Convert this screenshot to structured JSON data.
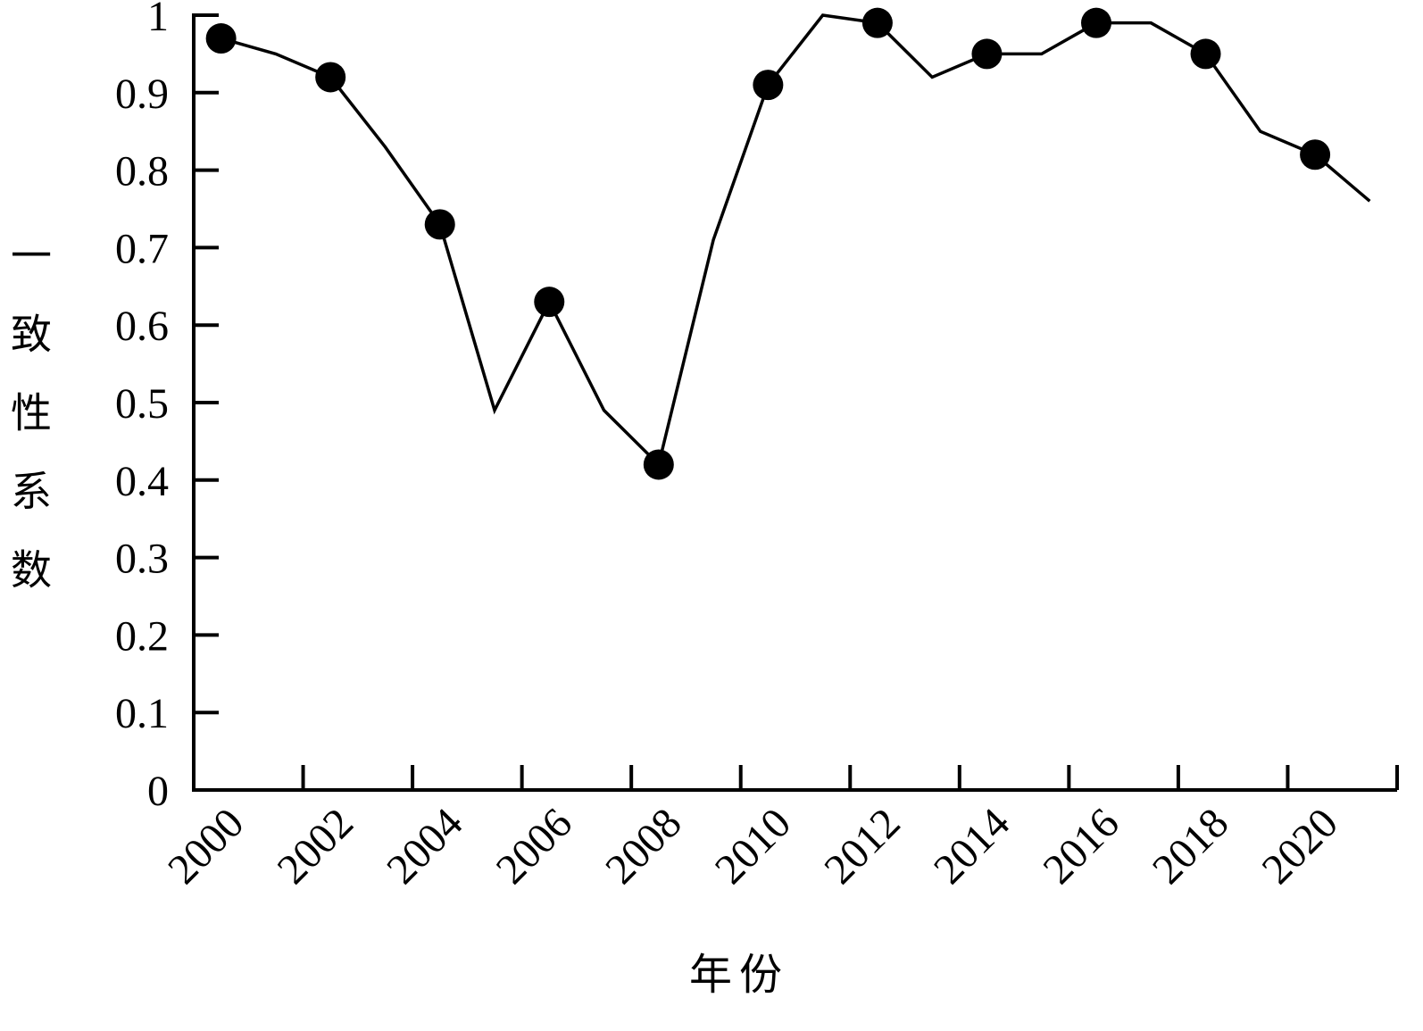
{
  "chart_data": {
    "type": "line",
    "x_label": "年份",
    "y_label": "一致性系数",
    "categories": [
      "2000",
      null,
      "2002",
      null,
      "2004",
      null,
      "2006",
      null,
      "2008",
      null,
      "2010",
      null,
      "2012",
      null,
      "2014",
      null,
      "2016",
      null,
      "2018",
      null,
      "2020",
      null
    ],
    "values": [
      0.97,
      0.95,
      0.92,
      0.83,
      0.73,
      0.49,
      0.63,
      0.49,
      0.42,
      0.71,
      0.91,
      1.0,
      0.99,
      0.92,
      0.95,
      0.95,
      0.99,
      0.99,
      0.95,
      0.85,
      0.82,
      0.76
    ],
    "color": "#000000",
    "ylim": [
      0,
      1
    ],
    "yticks": [
      0,
      0.1,
      0.2,
      0.3,
      0.4,
      0.5,
      0.6,
      0.7,
      0.8,
      0.9,
      1
    ]
  }
}
